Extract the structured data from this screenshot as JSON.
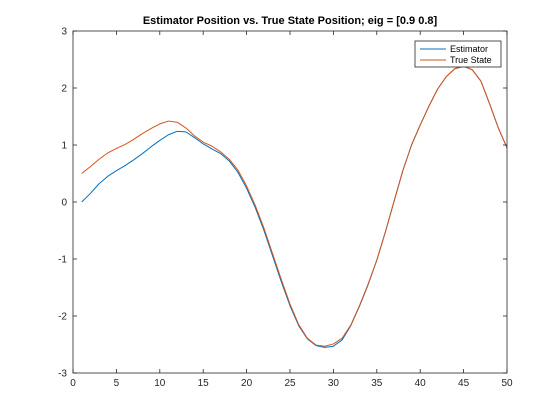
{
  "chart_data": {
    "type": "line",
    "title": "Estimator Position vs. True State Position; eig = [0.9 0.8]",
    "xlabel": "",
    "ylabel": "",
    "xlim": [
      0,
      50
    ],
    "ylim": [
      -3,
      3
    ],
    "x_ticks": [
      0,
      5,
      10,
      15,
      20,
      25,
      30,
      35,
      40,
      45,
      50
    ],
    "y_ticks": [
      -3,
      -2,
      -1,
      0,
      1,
      2,
      3
    ],
    "grid": false,
    "legend_position": "top-right",
    "x": [
      1,
      2,
      3,
      4,
      5,
      6,
      7,
      8,
      9,
      10,
      11,
      12,
      13,
      14,
      15,
      16,
      17,
      18,
      19,
      20,
      21,
      22,
      23,
      24,
      25,
      26,
      27,
      28,
      29,
      30,
      31,
      32,
      33,
      34,
      35,
      36,
      37,
      38,
      39,
      40,
      41,
      42,
      43,
      44,
      45,
      46,
      47,
      48,
      49,
      50
    ],
    "series": [
      {
        "name": "Estimator",
        "color": "#0072BD",
        "values": [
          0.0,
          0.15,
          0.32,
          0.45,
          0.55,
          0.64,
          0.74,
          0.85,
          0.97,
          1.08,
          1.18,
          1.24,
          1.23,
          1.13,
          1.02,
          0.93,
          0.85,
          0.72,
          0.52,
          0.24,
          -0.1,
          -0.5,
          -0.95,
          -1.4,
          -1.82,
          -2.17,
          -2.4,
          -2.52,
          -2.55,
          -2.53,
          -2.42,
          -2.17,
          -1.83,
          -1.45,
          -1.02,
          -0.52,
          0.02,
          0.55,
          1.0,
          1.35,
          1.68,
          1.98,
          2.2,
          2.34,
          2.38,
          2.32,
          2.12,
          1.72,
          1.3,
          0.95
        ]
      },
      {
        "name": "True State",
        "color": "#D95319",
        "values": [
          0.5,
          0.62,
          0.75,
          0.86,
          0.94,
          1.01,
          1.1,
          1.2,
          1.29,
          1.37,
          1.42,
          1.4,
          1.3,
          1.16,
          1.05,
          0.98,
          0.88,
          0.75,
          0.56,
          0.28,
          -0.06,
          -0.46,
          -0.91,
          -1.36,
          -1.79,
          -2.15,
          -2.39,
          -2.51,
          -2.53,
          -2.49,
          -2.39,
          -2.16,
          -1.82,
          -1.44,
          -1.02,
          -0.52,
          0.02,
          0.55,
          1.0,
          1.35,
          1.68,
          1.98,
          2.2,
          2.34,
          2.38,
          2.32,
          2.12,
          1.72,
          1.3,
          0.95
        ]
      }
    ]
  }
}
